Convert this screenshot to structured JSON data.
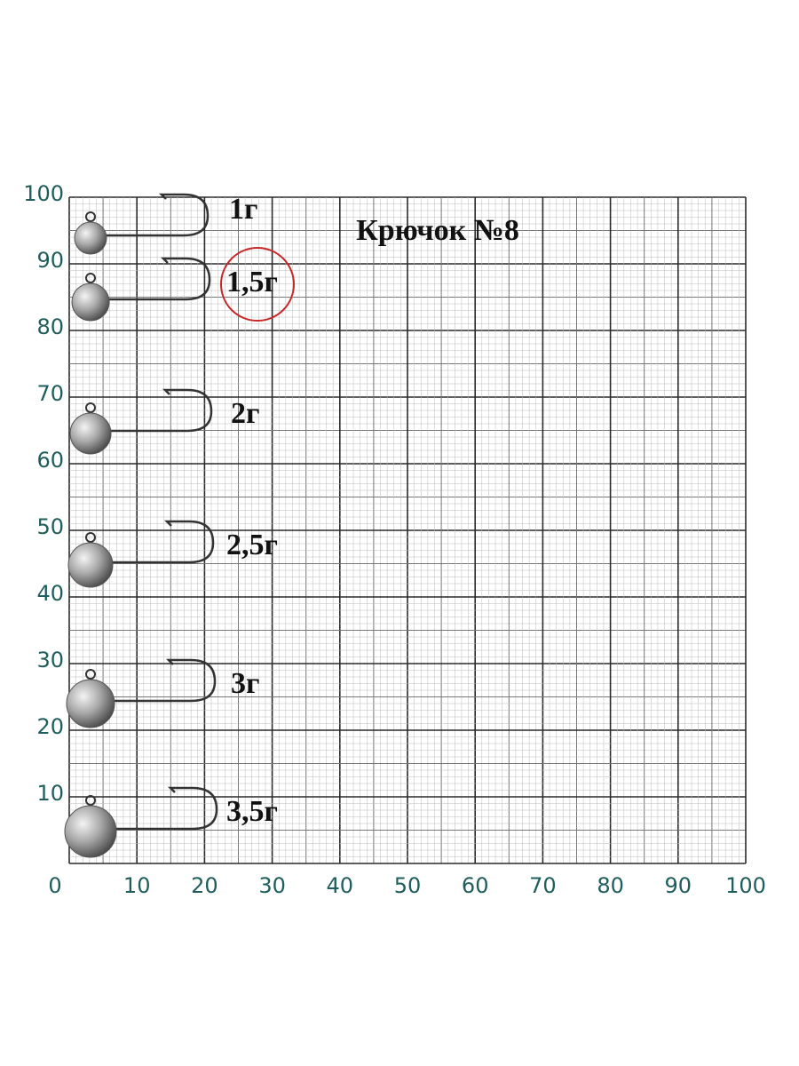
{
  "graph_paper": {
    "title": "Крючок №8",
    "x_labels": [
      "0",
      "10",
      "20",
      "30",
      "40",
      "50",
      "60",
      "70",
      "80",
      "90",
      "100"
    ],
    "y_labels": [
      "100",
      "90",
      "80",
      "70",
      "60",
      "50",
      "40",
      "30",
      "20",
      "10"
    ],
    "jig_labels": [
      "1г",
      "1,5г",
      "2г",
      "2,5г",
      "3г",
      "3,5г"
    ]
  }
}
